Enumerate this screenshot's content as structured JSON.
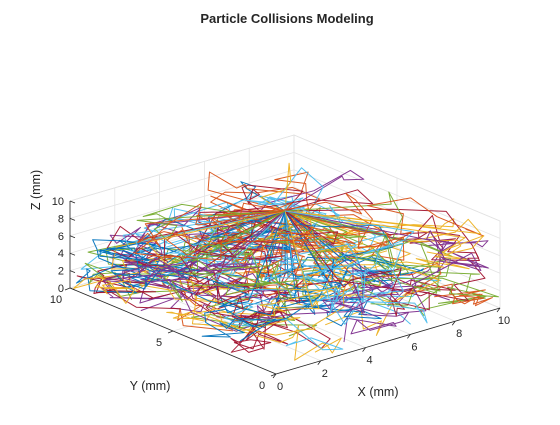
{
  "chart_data": {
    "type": "line3d",
    "title": "Particle Collisions Modeling",
    "xlabel": "X (mm)",
    "ylabel": "Y (mm)",
    "zlabel": "Z (mm)",
    "xlim": [
      0,
      10
    ],
    "ylim": [
      0,
      10
    ],
    "zlim": [
      0,
      10
    ],
    "x_ticks": [
      "0",
      "2",
      "4",
      "6",
      "8",
      "10"
    ],
    "y_ticks": [
      "0",
      "5",
      "10"
    ],
    "z_ticks": [
      "0",
      "2",
      "4",
      "6",
      "8",
      "10"
    ],
    "grid": true,
    "box": "back-walls",
    "legend": "none",
    "source_point": {
      "x": 5,
      "y": 5,
      "z": 10
    },
    "series_colors": [
      "#0072bd",
      "#d95319",
      "#edb120",
      "#7e2f8e",
      "#77ac30",
      "#4dbeee",
      "#a2142f"
    ],
    "trajectory_count": 90
  }
}
